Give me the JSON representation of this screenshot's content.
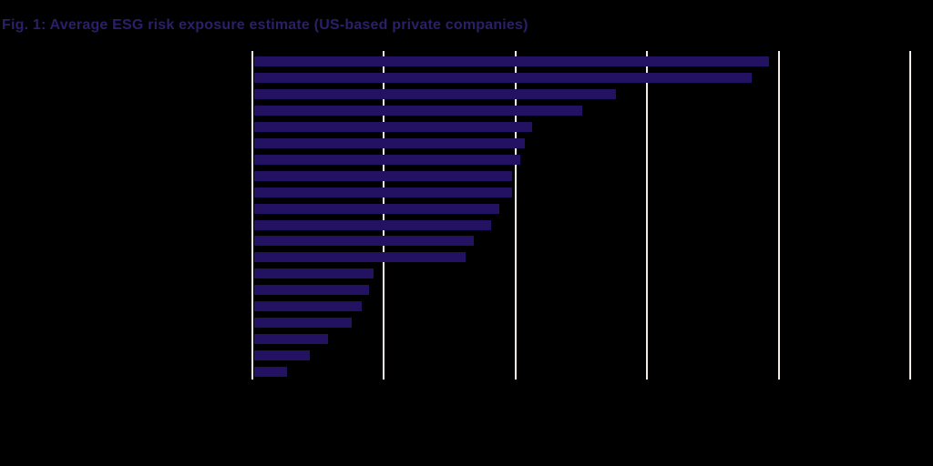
{
  "figure": {
    "background_color": "#000000",
    "title_color": "#2a2068"
  },
  "chart_data": {
    "type": "bar",
    "orientation": "horizontal",
    "title": "Fig. 1: Average ESG risk exposure estimate (US-based private companies)",
    "xlabel": "",
    "ylabel": "",
    "legend": false,
    "grid": true,
    "gridline_color": "#f1ede6",
    "bar_color": "#231161",
    "x_axis": {
      "min": 0,
      "max": 5,
      "gridline_step": 1,
      "tick_labels_visible": false
    },
    "category_labels_visible": false,
    "categories": [
      "",
      "",
      "",
      "",
      "",
      "",
      "",
      "",
      "",
      "",
      "",
      "",
      "",
      "",
      "",
      "",
      "",
      "",
      "",
      ""
    ],
    "values": [
      3.91,
      3.78,
      2.75,
      2.49,
      2.11,
      2.06,
      2.02,
      1.96,
      1.96,
      1.86,
      1.8,
      1.67,
      1.61,
      0.91,
      0.87,
      0.82,
      0.74,
      0.56,
      0.42,
      0.25
    ]
  }
}
